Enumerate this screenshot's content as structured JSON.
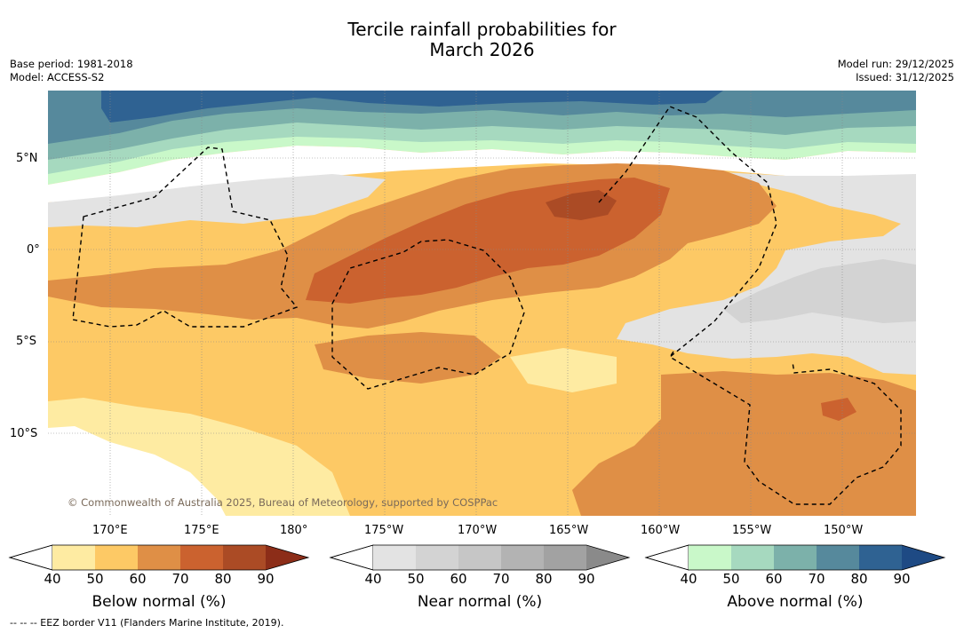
{
  "title": {
    "line1": "Tercile rainfall probabilities for",
    "line2": "March 2026"
  },
  "meta": {
    "base_period": "Base period: 1981-2018",
    "model": "Model: ACCESS-S2",
    "model_run": "Model run: 29/12/2025",
    "issued": "Issued: 31/12/2025"
  },
  "map": {
    "lat_labels": [
      "5°N",
      "0°",
      "5°S",
      "10°S"
    ],
    "lon_labels": [
      "170°E",
      "175°E",
      "180°",
      "175°W",
      "170°W",
      "165°W",
      "160°W",
      "155°W",
      "150°W"
    ],
    "copyright": "© Commonwealth of Australia 2025, Bureau of Meteorology, supported by COSPPac"
  },
  "colorbars": [
    {
      "name": "Below normal (%)",
      "ticks": [
        "40",
        "50",
        "60",
        "70",
        "80",
        "90"
      ],
      "colors": [
        "#ffffff",
        "#feeba2",
        "#fdc965",
        "#df8f46",
        "#cb622f",
        "#ab4b25",
        "#8c2d18"
      ]
    },
    {
      "name": "Near normal (%)",
      "ticks": [
        "40",
        "50",
        "60",
        "70",
        "80",
        "90"
      ],
      "colors": [
        "#ffffff",
        "#e3e3e3",
        "#d3d3d3",
        "#c6c6c6",
        "#b3b3b3",
        "#a2a2a2",
        "#8a8a8a"
      ]
    },
    {
      "name": "Above normal (%)",
      "ticks": [
        "40",
        "50",
        "60",
        "70",
        "80",
        "90"
      ],
      "colors": [
        "#ffffff",
        "#c9f8c9",
        "#a6d9bf",
        "#7cb1aa",
        "#56899c",
        "#2f6292",
        "#1e4a84"
      ]
    }
  ],
  "footer": "--  --  -- EEZ border V11 (Flanders Marine Institute, 2019)."
}
